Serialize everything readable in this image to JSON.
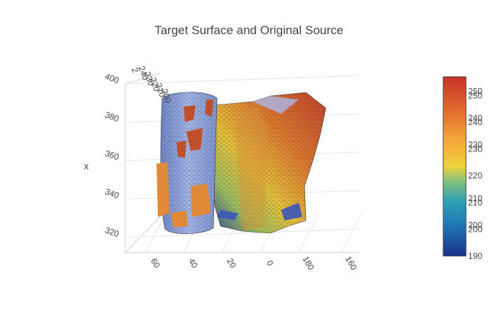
{
  "chart_data": {
    "type": "surface3d",
    "title": "Target Surface and Original Source",
    "axes": {
      "x": {
        "title": "x",
        "ticks": [
          "320",
          "340",
          "360",
          "380",
          "400"
        ],
        "range": [
          315,
          400
        ]
      },
      "y": {
        "title": "",
        "ticks": [
          "60",
          "40",
          "20",
          "0",
          "180",
          "160"
        ]
      },
      "z": {
        "title": "",
        "ticks": [
          "2",
          "240",
          "230",
          "220",
          "210",
          "200"
        ]
      }
    },
    "grid": true,
    "legend": "none",
    "colorbar": {
      "placement": "right",
      "range": [
        190,
        257
      ],
      "ticks": [
        "190",
        "200",
        "200",
        "210",
        "210",
        "220",
        "230",
        "230",
        "240",
        "240",
        "250",
        "250"
      ],
      "colorscale": [
        "#1a2f8a",
        "#1f6fb0",
        "#2aa0b8",
        "#86c27a",
        "#f0d23c",
        "#f5a33a",
        "#e06a2e",
        "#c8322a"
      ]
    },
    "series": [
      {
        "name": "",
        "surface": "target",
        "color": "#8ea6e0"
      },
      {
        "name": "",
        "surface": "original source",
        "colorscale": "portland"
      }
    ]
  }
}
